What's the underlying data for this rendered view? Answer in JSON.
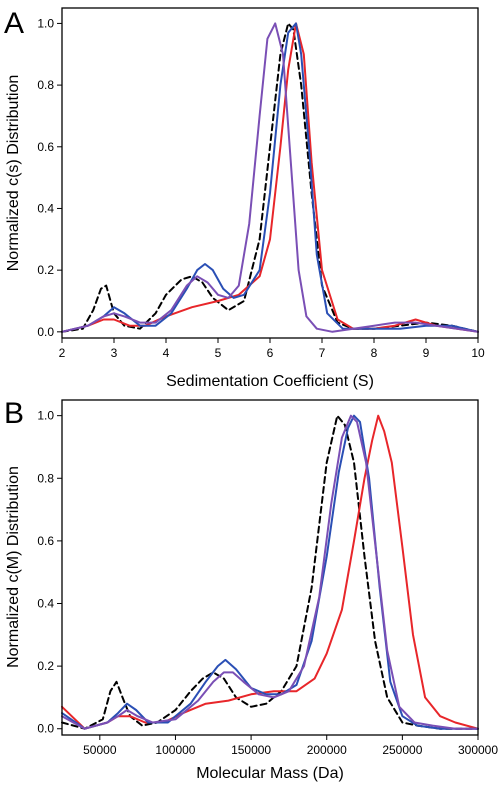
{
  "chart_data": [
    {
      "panel_label": "A",
      "type": "line",
      "xlabel": "Sedimentation Coefficient (S)",
      "ylabel": "Normalized c(s) Distribution",
      "xlim": [
        2,
        10
      ],
      "ylim": [
        -0.02,
        1.05
      ],
      "xticks": [
        "2",
        "3",
        "4",
        "5",
        "6",
        "7",
        "8",
        "9",
        "10"
      ],
      "yticks": [
        "0.0",
        "0.2",
        "0.4",
        "0.6",
        "0.8",
        "1.0"
      ],
      "grid": false,
      "series": [
        {
          "color": "#000000",
          "dash": "dashed",
          "x": [
            2,
            2.4,
            2.6,
            2.75,
            2.85,
            3.0,
            3.2,
            3.5,
            3.8,
            4.0,
            4.3,
            4.5,
            4.7,
            4.9,
            5.2,
            5.5,
            5.8,
            6.0,
            6.2,
            6.35,
            6.45,
            6.6,
            6.8,
            7.0,
            7.3,
            7.6,
            8.0,
            8.5,
            9.0,
            9.5,
            10
          ],
          "y": [
            0,
            0.01,
            0.07,
            0.14,
            0.15,
            0.06,
            0.02,
            0.01,
            0.06,
            0.12,
            0.17,
            0.18,
            0.16,
            0.11,
            0.07,
            0.1,
            0.3,
            0.6,
            0.9,
            1.0,
            0.98,
            0.8,
            0.45,
            0.15,
            0.03,
            0.01,
            0.01,
            0.02,
            0.03,
            0.02,
            0.0
          ]
        },
        {
          "color": "#e8262a",
          "x": [
            2,
            2.5,
            2.8,
            3.0,
            3.3,
            3.6,
            4.0,
            4.5,
            5.0,
            5.4,
            5.8,
            6.0,
            6.2,
            6.35,
            6.5,
            6.65,
            6.8,
            7.0,
            7.3,
            7.6,
            8.0,
            8.4,
            8.8,
            9.2,
            9.6,
            10
          ],
          "y": [
            0,
            0.02,
            0.04,
            0.04,
            0.02,
            0.02,
            0.05,
            0.08,
            0.1,
            0.12,
            0.18,
            0.3,
            0.6,
            0.85,
            1.0,
            0.9,
            0.55,
            0.2,
            0.04,
            0.01,
            0.01,
            0.02,
            0.04,
            0.02,
            0.01,
            0.0
          ]
        },
        {
          "color": "#2a4fb5",
          "x": [
            2,
            2.5,
            2.8,
            3.0,
            3.2,
            3.5,
            3.8,
            4.1,
            4.4,
            4.6,
            4.75,
            4.9,
            5.1,
            5.3,
            5.5,
            5.8,
            6.0,
            6.2,
            6.35,
            6.5,
            6.6,
            6.75,
            6.9,
            7.1,
            7.4,
            8.0,
            8.5,
            9.0,
            9.5,
            10
          ],
          "y": [
            0,
            0.02,
            0.05,
            0.08,
            0.06,
            0.02,
            0.02,
            0.06,
            0.14,
            0.2,
            0.22,
            0.2,
            0.14,
            0.11,
            0.12,
            0.2,
            0.45,
            0.8,
            0.97,
            1.0,
            0.9,
            0.6,
            0.25,
            0.06,
            0.01,
            0.01,
            0.01,
            0.02,
            0.02,
            0.0
          ]
        },
        {
          "color": "#7a4fb5",
          "x": [
            2,
            2.5,
            2.8,
            3.0,
            3.2,
            3.5,
            3.8,
            4.1,
            4.4,
            4.6,
            4.8,
            5.0,
            5.2,
            5.4,
            5.6,
            5.8,
            5.95,
            6.1,
            6.25,
            6.4,
            6.55,
            6.7,
            6.9,
            7.2,
            7.6,
            8.0,
            8.4,
            8.8,
            9.2,
            9.6,
            10
          ],
          "y": [
            0,
            0.02,
            0.05,
            0.06,
            0.05,
            0.03,
            0.03,
            0.07,
            0.15,
            0.18,
            0.16,
            0.12,
            0.11,
            0.15,
            0.35,
            0.7,
            0.95,
            1.0,
            0.9,
            0.55,
            0.2,
            0.05,
            0.01,
            0.0,
            0.01,
            0.02,
            0.03,
            0.03,
            0.02,
            0.01,
            0.0
          ]
        }
      ]
    },
    {
      "panel_label": "B",
      "type": "line",
      "xlabel": "Molecular Mass (Da)",
      "ylabel": "Normalized c(M) Distribution",
      "xlim": [
        25000,
        300000
      ],
      "ylim": [
        -0.02,
        1.05
      ],
      "xticks": [
        "50000",
        "100000",
        "150000",
        "200000",
        "250000",
        "300000"
      ],
      "yticks": [
        "0.0",
        "0.2",
        "0.4",
        "0.6",
        "0.8",
        "1.0"
      ],
      "grid": false,
      "series": [
        {
          "color": "#000000",
          "dash": "dashed",
          "x": [
            25000,
            40000,
            52000,
            57000,
            61000,
            65000,
            70000,
            78000,
            88000,
            100000,
            110000,
            118000,
            125000,
            132000,
            140000,
            150000,
            160000,
            170000,
            180000,
            190000,
            200000,
            207000,
            212000,
            218000,
            225000,
            232000,
            240000,
            250000,
            260000,
            275000,
            300000
          ],
          "y": [
            0.02,
            0.0,
            0.03,
            0.12,
            0.15,
            0.1,
            0.04,
            0.01,
            0.02,
            0.06,
            0.12,
            0.16,
            0.18,
            0.16,
            0.1,
            0.07,
            0.08,
            0.12,
            0.2,
            0.45,
            0.85,
            1.0,
            0.97,
            0.85,
            0.55,
            0.28,
            0.1,
            0.02,
            0.01,
            0.0,
            0.0
          ]
        },
        {
          "color": "#e8262a",
          "x": [
            25000,
            40000,
            55000,
            62000,
            70000,
            80000,
            92000,
            105000,
            120000,
            135000,
            150000,
            165000,
            180000,
            192000,
            200000,
            210000,
            218000,
            225000,
            230000,
            234000,
            238000,
            243000,
            250000,
            257000,
            265000,
            275000,
            285000,
            300000
          ],
          "y": [
            0.07,
            0.0,
            0.02,
            0.04,
            0.04,
            0.02,
            0.02,
            0.05,
            0.08,
            0.09,
            0.11,
            0.12,
            0.12,
            0.16,
            0.24,
            0.38,
            0.6,
            0.8,
            0.92,
            1.0,
            0.95,
            0.85,
            0.58,
            0.3,
            0.1,
            0.04,
            0.02,
            0.0
          ]
        },
        {
          "color": "#2a4fb5",
          "x": [
            25000,
            40000,
            55000,
            62000,
            68000,
            74000,
            82000,
            95000,
            110000,
            120000,
            128000,
            133000,
            140000,
            150000,
            160000,
            170000,
            180000,
            190000,
            200000,
            208000,
            214000,
            218000,
            222000,
            228000,
            235000,
            242000,
            250000,
            260000,
            275000,
            300000
          ],
          "y": [
            0.05,
            0.0,
            0.02,
            0.05,
            0.08,
            0.06,
            0.02,
            0.02,
            0.08,
            0.15,
            0.2,
            0.22,
            0.19,
            0.13,
            0.11,
            0.11,
            0.14,
            0.28,
            0.55,
            0.82,
            0.96,
            1.0,
            0.98,
            0.8,
            0.45,
            0.15,
            0.04,
            0.01,
            0.0,
            0.0
          ]
        },
        {
          "color": "#7a4fb5",
          "x": [
            25000,
            40000,
            55000,
            62000,
            68000,
            75000,
            85000,
            100000,
            115000,
            125000,
            132000,
            138000,
            145000,
            155000,
            165000,
            175000,
            185000,
            195000,
            203000,
            210000,
            216000,
            220000,
            226000,
            233000,
            240000,
            248000,
            258000,
            270000,
            285000,
            300000
          ],
          "y": [
            0.04,
            0.0,
            0.02,
            0.04,
            0.06,
            0.04,
            0.02,
            0.03,
            0.09,
            0.15,
            0.18,
            0.18,
            0.15,
            0.11,
            0.1,
            0.12,
            0.2,
            0.42,
            0.72,
            0.93,
            1.0,
            0.98,
            0.85,
            0.55,
            0.25,
            0.07,
            0.02,
            0.01,
            0.0,
            0.0
          ]
        }
      ]
    }
  ]
}
